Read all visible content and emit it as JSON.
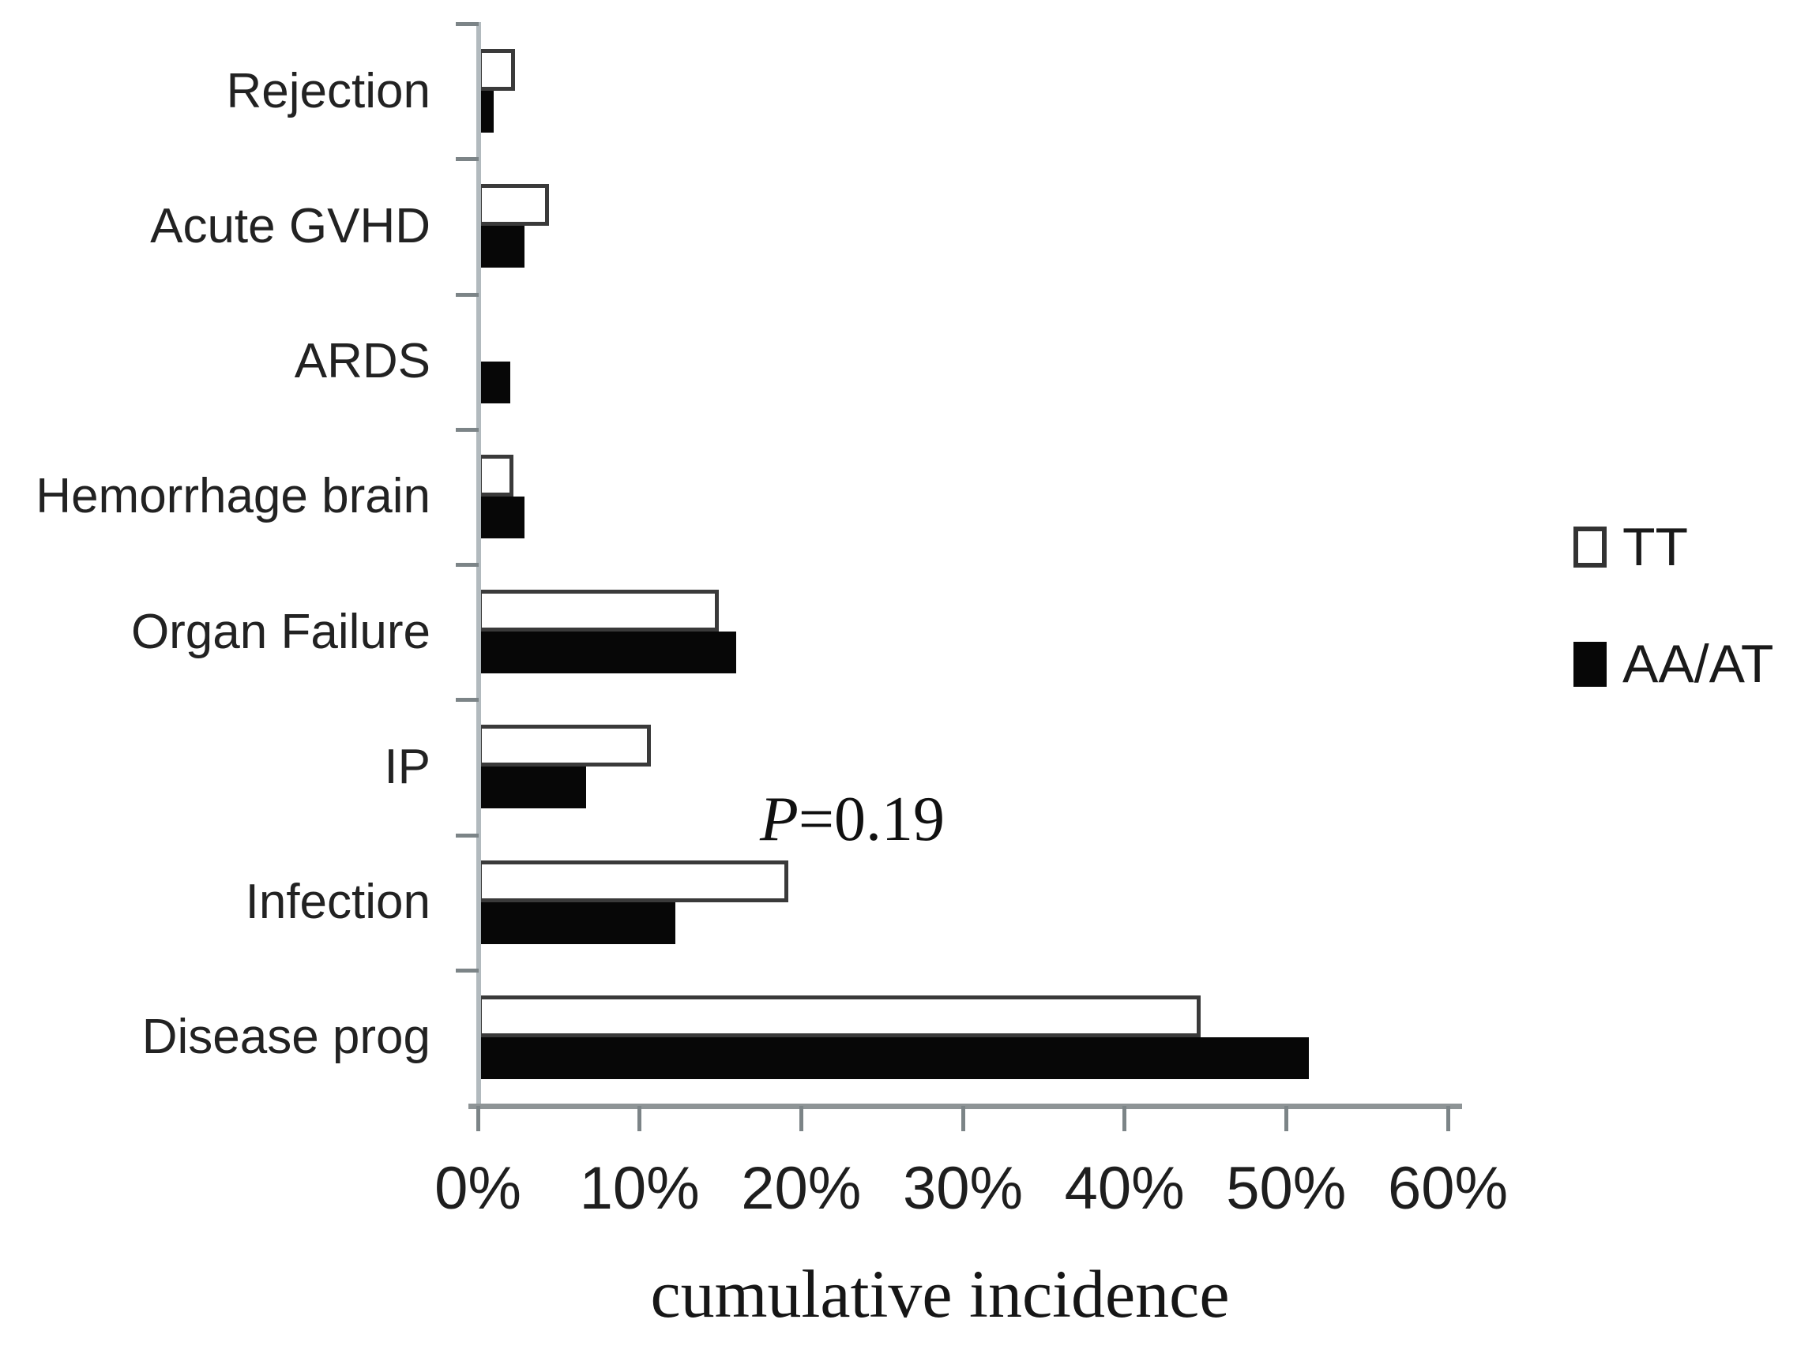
{
  "figure": {
    "legend": {
      "tt": "TT",
      "aa_at": "AA/AT"
    },
    "annotation": {
      "p_italic": "P",
      "value": "=0.19"
    },
    "x_axis_label": "cumulative incidence"
  },
  "chart_data": {
    "type": "bar",
    "orientation": "horizontal",
    "title": "",
    "xlabel": "cumulative incidence",
    "ylabel": "",
    "categories": [
      "Rejection",
      "Acute GVHD",
      "ARDS",
      "Hemorrhage brain",
      "Organ Failure",
      "IP",
      "Infection",
      "Disease prog"
    ],
    "series": [
      {
        "name": "TT",
        "fill": "#ffffff",
        "border": "#3a3a3a",
        "values": [
          2.3,
          4.4,
          0,
          2.2,
          14.9,
          10.7,
          19.2,
          44.7
        ]
      },
      {
        "name": "AA/AT",
        "fill": "#070707",
        "border": "#070707",
        "values": [
          1.0,
          2.9,
          2.0,
          2.9,
          16.0,
          6.7,
          12.2,
          51.4
        ]
      }
    ],
    "x_ticks": [
      "0%",
      "10%",
      "20%",
      "30%",
      "40%",
      "50%",
      "60%"
    ],
    "xlim": [
      0,
      60
    ],
    "grid": false,
    "legend_position": "right",
    "annotation": {
      "text": "P=0.19",
      "attached_to": "Infection"
    }
  }
}
